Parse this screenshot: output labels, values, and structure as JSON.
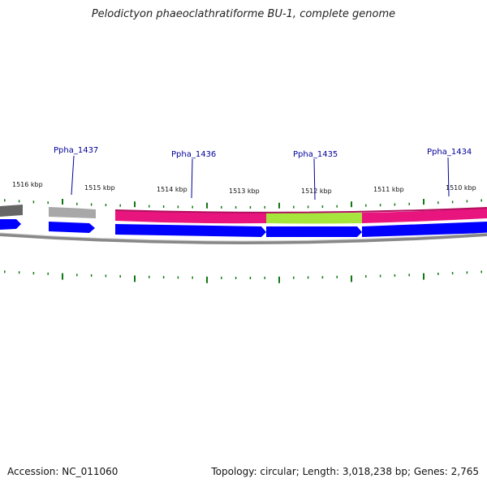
{
  "title": "Pelodictyon phaeoclathratiforme BU-1, complete genome",
  "accession_text": "Accession: NC_011060",
  "summary_text": "Topology: circular; Length: 3,018,238 bp; Genes: 2,765",
  "scale_labels": [
    "1516 kbp",
    "1515 kbp",
    "1514 kbp",
    "1513 kbp",
    "1512 kbp",
    "1511 kbp",
    "1510 kbp"
  ],
  "gene_labels": [
    "Ppha_1437",
    "Ppha_1436",
    "Ppha_1435",
    "Ppha_1434"
  ],
  "colors": {
    "forward_cds": "#0000ff",
    "reverse_feature": "#e8157e",
    "highlight_feature": "#a6e63c",
    "backbone": "#888888",
    "tick": "#117711",
    "gene_label": "#00009a",
    "grey_feature": "#a8a8a8",
    "dark_grey_feature": "#666666"
  }
}
